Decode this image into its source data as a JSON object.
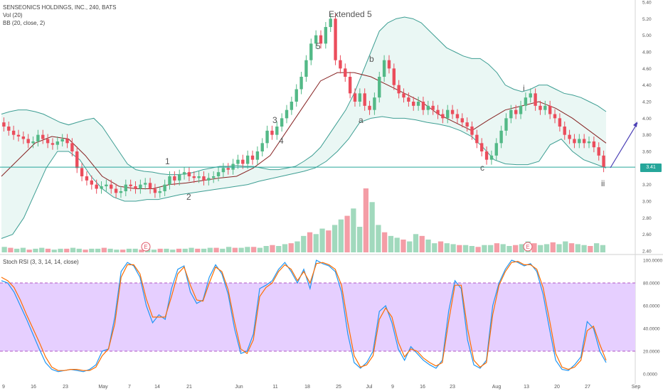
{
  "legend": {
    "title": "SENSEONICS HOLDINGS, INC., 240, BATS",
    "vol": "Vol (20)",
    "bb": "BB (20, close, 2)"
  },
  "rsi_legend": "Stoch RSI (3, 3, 14, 14, close)",
  "last_price_label": "3.41",
  "colors": {
    "up": "#53b987",
    "down": "#eb4d5c",
    "bb_band": "#3e9e93",
    "bb_basis": "#872323",
    "bb_fill": "#e8f6f3",
    "rsi_k": "#2196f3",
    "rsi_d": "#ff6d00",
    "rsi_band_fill": "#e6cfff",
    "rsi_band_line": "#9c27b0",
    "price_line": "#26a69a",
    "arrow": "#4a3fb5"
  },
  "chart_data": [
    {
      "type": "candlestick",
      "title": "SENSEONICS HOLDINGS, INC., 240, BATS",
      "ylim": [
        2.4,
        5.4
      ],
      "y_ticks": [
        "5.40",
        "5.20",
        "5.00",
        "4.80",
        "4.60",
        "4.40",
        "4.20",
        "4.00",
        "3.80",
        "3.60",
        "3.40",
        "3.20",
        "3.00",
        "2.80",
        "2.60",
        "2.40"
      ],
      "x_ticks": [
        "9",
        "16",
        "23",
        "May",
        "7",
        "14",
        "21",
        "Jun",
        "11",
        "18",
        "25",
        "Jul",
        "9",
        "16",
        "23",
        "Aug",
        "13",
        "20",
        "27",
        "Sep"
      ],
      "last_price": 3.41,
      "close_series": [
        3.9,
        3.85,
        3.8,
        3.78,
        3.75,
        3.7,
        3.72,
        3.8,
        3.75,
        3.7,
        3.68,
        3.72,
        3.75,
        3.7,
        3.6,
        3.4,
        3.3,
        3.25,
        3.2,
        3.15,
        3.18,
        3.2,
        3.15,
        3.1,
        3.12,
        3.2,
        3.18,
        3.15,
        3.2,
        3.22,
        3.15,
        3.1,
        3.12,
        3.2,
        3.3,
        3.25,
        3.32,
        3.35,
        3.3,
        3.28,
        3.3,
        3.25,
        3.28,
        3.3,
        3.35,
        3.4,
        3.38,
        3.45,
        3.5,
        3.45,
        3.55,
        3.5,
        3.6,
        3.7,
        3.85,
        3.8,
        3.9,
        4.0,
        4.1,
        4.2,
        4.35,
        4.5,
        4.7,
        4.9,
        5.0,
        4.9,
        5.1,
        5.2,
        4.7,
        4.6,
        4.5,
        4.3,
        4.2,
        4.3,
        4.15,
        4.1,
        4.25,
        4.5,
        4.7,
        4.6,
        4.4,
        4.3,
        4.25,
        4.2,
        4.15,
        4.2,
        4.1,
        4.15,
        4.1,
        4.05,
        4.0,
        4.1,
        4.05,
        4.0,
        3.95,
        3.9,
        3.8,
        3.7,
        3.6,
        3.5,
        3.55,
        3.7,
        3.85,
        4.0,
        4.1,
        4.05,
        4.15,
        4.25,
        4.3,
        4.15,
        4.1,
        4.15,
        4.05,
        4.0,
        3.9,
        3.8,
        3.75,
        3.7,
        3.75,
        3.7,
        3.72,
        3.65,
        3.55,
        3.41
      ],
      "bb_upper": [
        4.05,
        4.08,
        4.1,
        4.1,
        4.08,
        4.05,
        4.0,
        3.95,
        3.92,
        3.95,
        3.98,
        4.0,
        3.9,
        3.75,
        3.6,
        3.45,
        3.38,
        3.36,
        3.35,
        3.33,
        3.32,
        3.32,
        3.33,
        3.35,
        3.38,
        3.4,
        3.42,
        3.42,
        3.43,
        3.42,
        3.42,
        3.4,
        3.38,
        3.38,
        3.4,
        3.42,
        3.48,
        3.55,
        3.65,
        3.8,
        3.95,
        4.1,
        4.3,
        4.55,
        4.8,
        5.05,
        5.15,
        5.2,
        5.22,
        5.2,
        5.15,
        5.05,
        4.95,
        4.85,
        4.8,
        4.75,
        4.72,
        4.72,
        4.65,
        4.55,
        4.4,
        4.35,
        4.32,
        4.35,
        4.4,
        4.4,
        4.35,
        4.3,
        4.28,
        4.25,
        4.2,
        4.15,
        4.08
      ],
      "bb_lower": [
        2.55,
        2.6,
        2.8,
        3.1,
        3.4,
        3.6,
        3.6,
        3.5,
        3.3,
        3.15,
        3.05,
        3.0,
        3.0,
        3.02,
        3.02,
        3.05,
        3.08,
        3.1,
        3.12,
        3.14,
        3.16,
        3.18,
        3.2,
        3.24,
        3.27,
        3.3,
        3.33,
        3.36,
        3.4,
        3.48,
        3.6,
        3.75,
        3.95,
        4.0,
        4.02,
        4.0,
        4.0,
        3.98,
        3.95,
        3.93,
        3.9,
        3.85,
        3.78,
        3.65,
        3.5,
        3.45,
        3.44,
        3.44,
        3.48,
        3.68,
        3.75,
        3.6,
        3.5,
        3.45,
        3.4
      ],
      "bb_basis": [
        3.3,
        3.5,
        3.7,
        3.78,
        3.75,
        3.55,
        3.3,
        3.18,
        3.15,
        3.15,
        3.2,
        3.22,
        3.25,
        3.28,
        3.3,
        3.4,
        3.55,
        3.85,
        4.15,
        4.45,
        4.55,
        4.55,
        4.5,
        4.4,
        4.3,
        4.2,
        4.05,
        3.95,
        3.85,
        3.98,
        4.1,
        4.15,
        4.2,
        4.12,
        4.0,
        3.85,
        3.7
      ],
      "annotations": [
        "Extended 5",
        "5",
        "b",
        "a",
        "3",
        "4",
        "1",
        "2",
        "i",
        "c",
        "ii"
      ]
    },
    {
      "type": "line",
      "title": "Stoch RSI (3, 3, 14, 14, close)",
      "ylim": [
        0,
        100
      ],
      "y_ticks": [
        "100.0000",
        "80.0000",
        "60.0000",
        "40.0000",
        "20.0000",
        "0.0000"
      ],
      "band": [
        20,
        80
      ],
      "series": [
        {
          "name": "K",
          "values": [
            82,
            80,
            72,
            60,
            48,
            35,
            22,
            10,
            4,
            2,
            3,
            4,
            3,
            2,
            4,
            8,
            20,
            22,
            50,
            90,
            98,
            95,
            85,
            60,
            45,
            52,
            48,
            75,
            92,
            95,
            72,
            62,
            65,
            85,
            96,
            88,
            70,
            40,
            18,
            20,
            35,
            75,
            78,
            82,
            92,
            98,
            90,
            80,
            92,
            75,
            100,
            97,
            95,
            90,
            72,
            35,
            10,
            5,
            10,
            20,
            55,
            60,
            45,
            22,
            12,
            24,
            18,
            12,
            8,
            5,
            12,
            55,
            82,
            75,
            30,
            8,
            5,
            12,
            60,
            80,
            92,
            100,
            98,
            95,
            97,
            90,
            70,
            40,
            12,
            4,
            3,
            8,
            15,
            46,
            40,
            20,
            10
          ]
        },
        {
          "name": "D",
          "values": [
            85,
            82,
            76,
            65,
            52,
            40,
            28,
            15,
            6,
            3,
            3,
            4,
            4,
            3,
            3,
            6,
            16,
            22,
            44,
            85,
            96,
            96,
            88,
            66,
            50,
            50,
            50,
            68,
            88,
            94,
            78,
            65,
            64,
            80,
            94,
            90,
            74,
            46,
            22,
            18,
            30,
            68,
            76,
            80,
            90,
            96,
            92,
            82,
            90,
            80,
            97,
            98,
            96,
            92,
            78,
            45,
            16,
            6,
            8,
            16,
            48,
            58,
            50,
            28,
            15,
            22,
            20,
            14,
            10,
            7,
            10,
            46,
            78,
            78,
            40,
            12,
            6,
            10,
            52,
            78,
            90,
            98,
            99,
            96,
            96,
            92,
            76,
            48,
            18,
            6,
            4,
            6,
            12,
            38,
            42,
            26,
            12
          ]
        }
      ]
    }
  ],
  "volume": {
    "label": "Vol (20)",
    "values": [
      6,
      5,
      4,
      5,
      3,
      4,
      5,
      4,
      3,
      4,
      4,
      5,
      4,
      3,
      4,
      4,
      5,
      4,
      3,
      3,
      4,
      4,
      3,
      4,
      3,
      4,
      4,
      3,
      4,
      4,
      5,
      4,
      4,
      5,
      5,
      4,
      6,
      5,
      5,
      6,
      6,
      5,
      7,
      8,
      7,
      9,
      10,
      12,
      18,
      22,
      20,
      26,
      24,
      30,
      36,
      40,
      48,
      28,
      70,
      55,
      30,
      22,
      18,
      16,
      14,
      12,
      20,
      18,
      14,
      10,
      12,
      10,
      9,
      8,
      8,
      7,
      6,
      8,
      8,
      10,
      9,
      7,
      8,
      9,
      12,
      10,
      8,
      9,
      11,
      9,
      12,
      10,
      9,
      8,
      7,
      10,
      8
    ],
    "earnings_markers": [
      "E",
      "E"
    ]
  }
}
